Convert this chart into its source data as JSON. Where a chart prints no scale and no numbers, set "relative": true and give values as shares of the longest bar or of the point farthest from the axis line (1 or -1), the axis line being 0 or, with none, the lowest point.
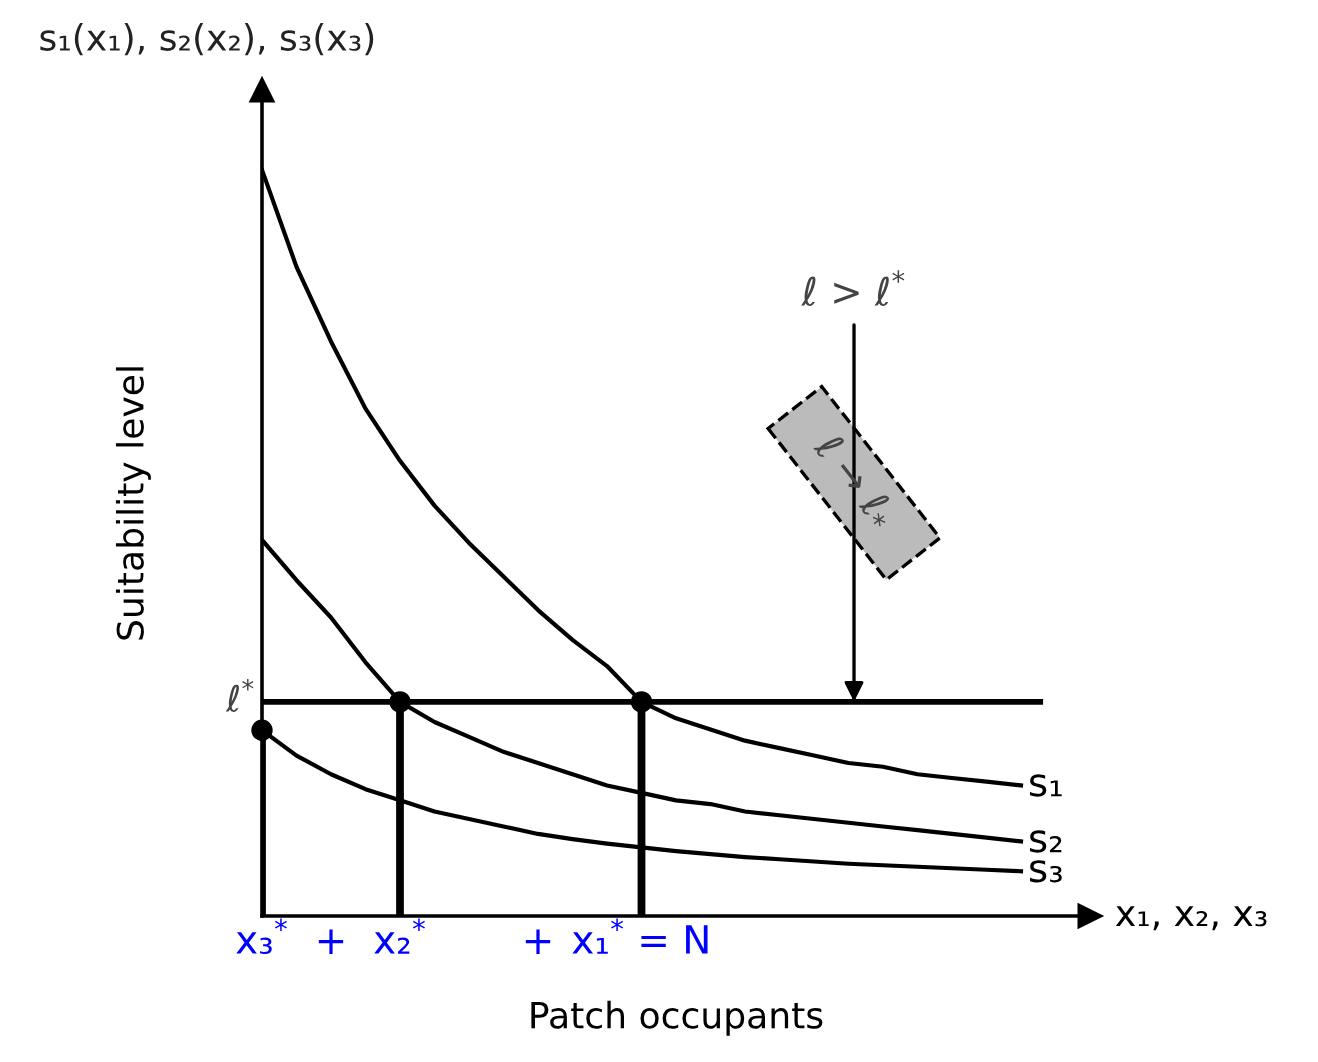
{
  "chart_data": {
    "type": "line",
    "relative": true,
    "xlabel": "Patch occupants",
    "ylabel": "Suitability level",
    "categories": [
      "x₃$^{*}$",
      null,
      "+",
      null,
      "x₂$^{*}$",
      null,
      null,
      null,
      "+",
      null,
      null,
      "x₁$^{*}$ = N",
      null,
      null,
      null,
      null,
      null,
      null,
      null,
      null,
      null,
      null,
      null
    ],
    "series": [
      {
        "name": "s₁",
        "color": "#000000",
        "values": [
          1,
          0.87,
          0.77,
          0.68,
          0.61,
          0.55,
          0.5,
          0.455,
          0.41,
          0.37,
          0.335,
          0.287,
          0.265,
          0.25,
          0.235,
          0.225,
          0.215,
          0.205,
          0.2,
          0.19,
          0.185,
          0.18,
          0.175
        ]
      },
      {
        "name": "s₂",
        "color": "#000000",
        "values": [
          0.504,
          0.45,
          0.4,
          0.34,
          0.287,
          0.26,
          0.24,
          0.22,
          0.205,
          0.19,
          0.175,
          0.165,
          0.155,
          0.15,
          0.14,
          0.135,
          0.13,
          0.125,
          0.12,
          0.115,
          0.11,
          0.105,
          0.1
        ]
      },
      {
        "name": "s₃",
        "color": "#000000",
        "values": [
          0.249,
          0.215,
          0.19,
          0.17,
          0.155,
          0.14,
          0.13,
          0.12,
          0.11,
          0.103,
          0.097,
          0.092,
          0.087,
          0.083,
          0.079,
          0.076,
          0.073,
          0.07,
          0.068,
          0.066,
          0.064,
          0.062,
          0.06
        ]
      },
      {
        "type": "lollipop",
        "color": "#000000",
        "marker": "circle",
        "values": [
          0.249,
          null,
          null,
          null,
          0.287,
          null,
          null,
          null,
          null,
          null,
          null,
          0.287,
          null,
          null,
          null,
          null,
          null,
          null,
          null,
          null,
          null,
          null,
          null
        ]
      }
    ],
    "ref_lines": [
      {
        "axis": "y",
        "value": 0.287,
        "label": "ℓ$^{*}$",
        "color": "#000000"
      }
    ],
    "annotations": [
      "s₁(x₁), s₂(x₂), s₃(x₃)",
      "x₁, x₂, x₃",
      {
        "text": "ℓ > ℓ$^{*}$",
        "y": 0.287
      },
      "ℓ → ℓ$_{*}$"
    ],
    "legend": false,
    "marker": "none"
  }
}
